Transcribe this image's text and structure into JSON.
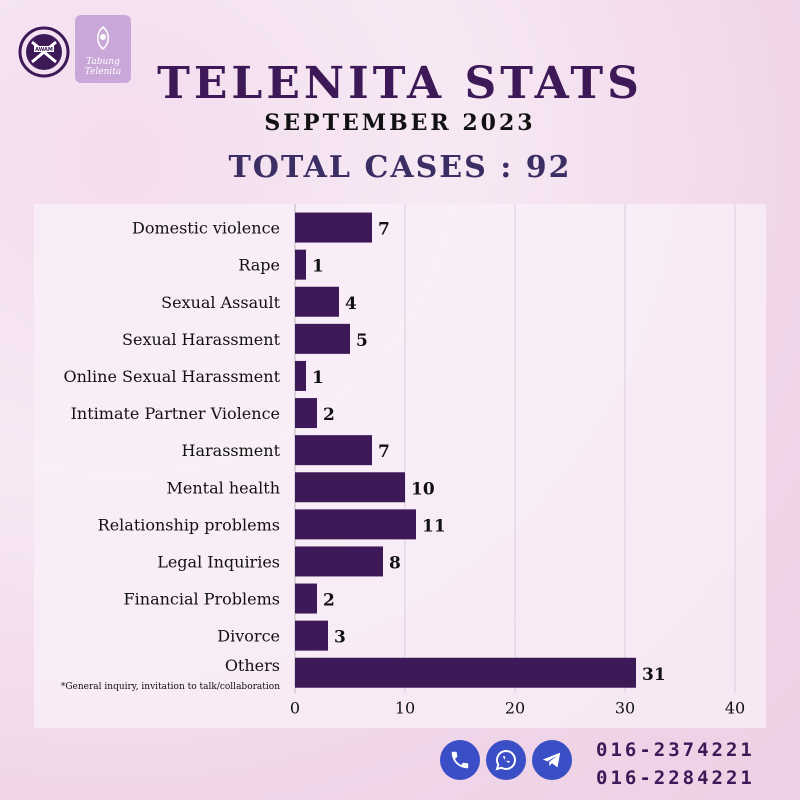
{
  "header": {
    "title": "TELENITA STATS",
    "subtitle": "SEPTEMBER 2023",
    "total": "TOTAL CASES : 92"
  },
  "logos": {
    "awam": "AWAM",
    "tabung": "Tabung Telenita"
  },
  "chart_data": {
    "type": "bar",
    "orientation": "horizontal",
    "categories": [
      "Domestic violence",
      "Rape",
      "Sexual Assault",
      "Sexual Harassment",
      "Online Sexual Harassment",
      "Intimate Partner Violence",
      "Harassment",
      "Mental health",
      "Relationship problems",
      "Legal Inquiries",
      "Financial Problems",
      "Divorce",
      "Others"
    ],
    "values": [
      7,
      1,
      4,
      5,
      1,
      2,
      7,
      10,
      11,
      8,
      2,
      3,
      31
    ],
    "footnote": "*General inquiry, invitation to talk/collaboration",
    "xlim": [
      0,
      40
    ],
    "xticks": [
      0,
      10,
      20,
      30,
      40
    ],
    "grid": true,
    "data_labels": true,
    "bar_color": "#3d1a57"
  },
  "contact": {
    "icons": [
      "phone-icon",
      "whatsapp-icon",
      "telegram-icon"
    ],
    "icon_color": "#3a4ec5",
    "phones": [
      "016-2374221",
      "016-2284221"
    ]
  }
}
